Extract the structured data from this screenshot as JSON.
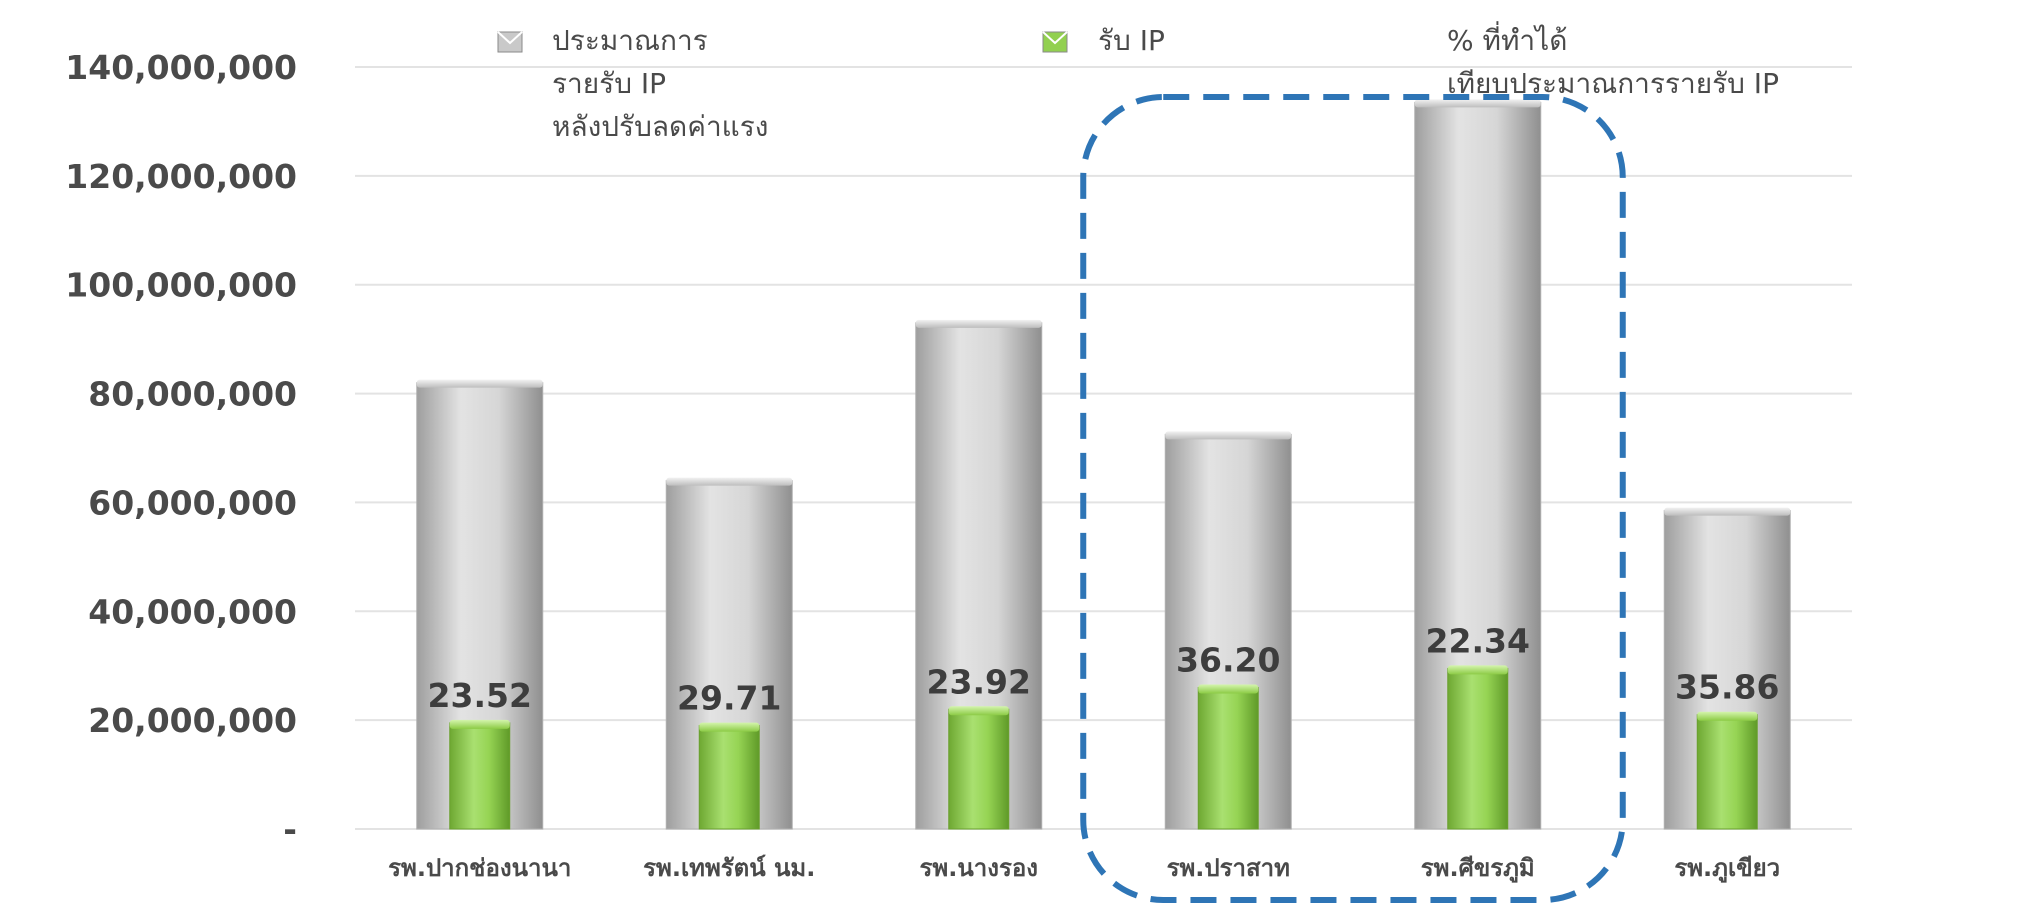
{
  "chart_data": {
    "type": "bar",
    "categories": [
      "รพ.ปากช่องนานา",
      "รพ.เทพรัตน์ นม.",
      "รพ.นางรอง",
      "รพ.ปราสาท",
      "รพ.ศีขรภูมิ",
      "รพ.ภูเขียว"
    ],
    "series": [
      {
        "name": "ประมาณการ รายรับ IP หลังปรับลดค่าแรง",
        "values": [
          82000000,
          64000000,
          93000000,
          72500000,
          133500000,
          58500000
        ],
        "color": "#c9c9c9"
      },
      {
        "name": "รับ IP",
        "values": [
          19500000,
          19000000,
          22000000,
          26000000,
          29500000,
          21000000
        ],
        "color": "#92d050"
      }
    ],
    "percent_series": {
      "name": "% ที่ทำได้ เทียบประมาณการรายรับ IP",
      "labels": [
        "23.52",
        "29.71",
        "23.92",
        "36.20",
        "22.34",
        "35.86"
      ]
    },
    "ylim": [
      0,
      140000000
    ],
    "y_ticks": [
      {
        "value": 0,
        "label": "-"
      },
      {
        "value": 20000000,
        "label": "20,000,000"
      },
      {
        "value": 40000000,
        "label": "40,000,000"
      },
      {
        "value": 60000000,
        "label": "60,000,000"
      },
      {
        "value": 80000000,
        "label": "80,000,000"
      },
      {
        "value": 100000000,
        "label": "100,000,000"
      },
      {
        "value": 120000000,
        "label": "120,000,000"
      },
      {
        "value": 140000000,
        "label": "140,000,000"
      }
    ],
    "legend": {
      "placement": "top",
      "items": [
        {
          "lines": [
            "ประมาณการ",
            "รายรับ IP",
            "หลังปรับลดค่าแรง"
          ],
          "color": "#c9c9c9",
          "has_swatch": true
        },
        {
          "lines": [
            "รับ IP"
          ],
          "color": "#92d050",
          "has_swatch": true
        },
        {
          "lines": [
            "% ที่ทำได้",
            "เทียบประมาณการรายรับ IP"
          ],
          "color": "",
          "has_swatch": false
        }
      ]
    },
    "highlight": {
      "categories": [
        "รพ.ปราสาท",
        "รพ.ศีขรภูมิ"
      ],
      "style": "dashed",
      "color": "#2e75b6"
    },
    "grid": true
  }
}
